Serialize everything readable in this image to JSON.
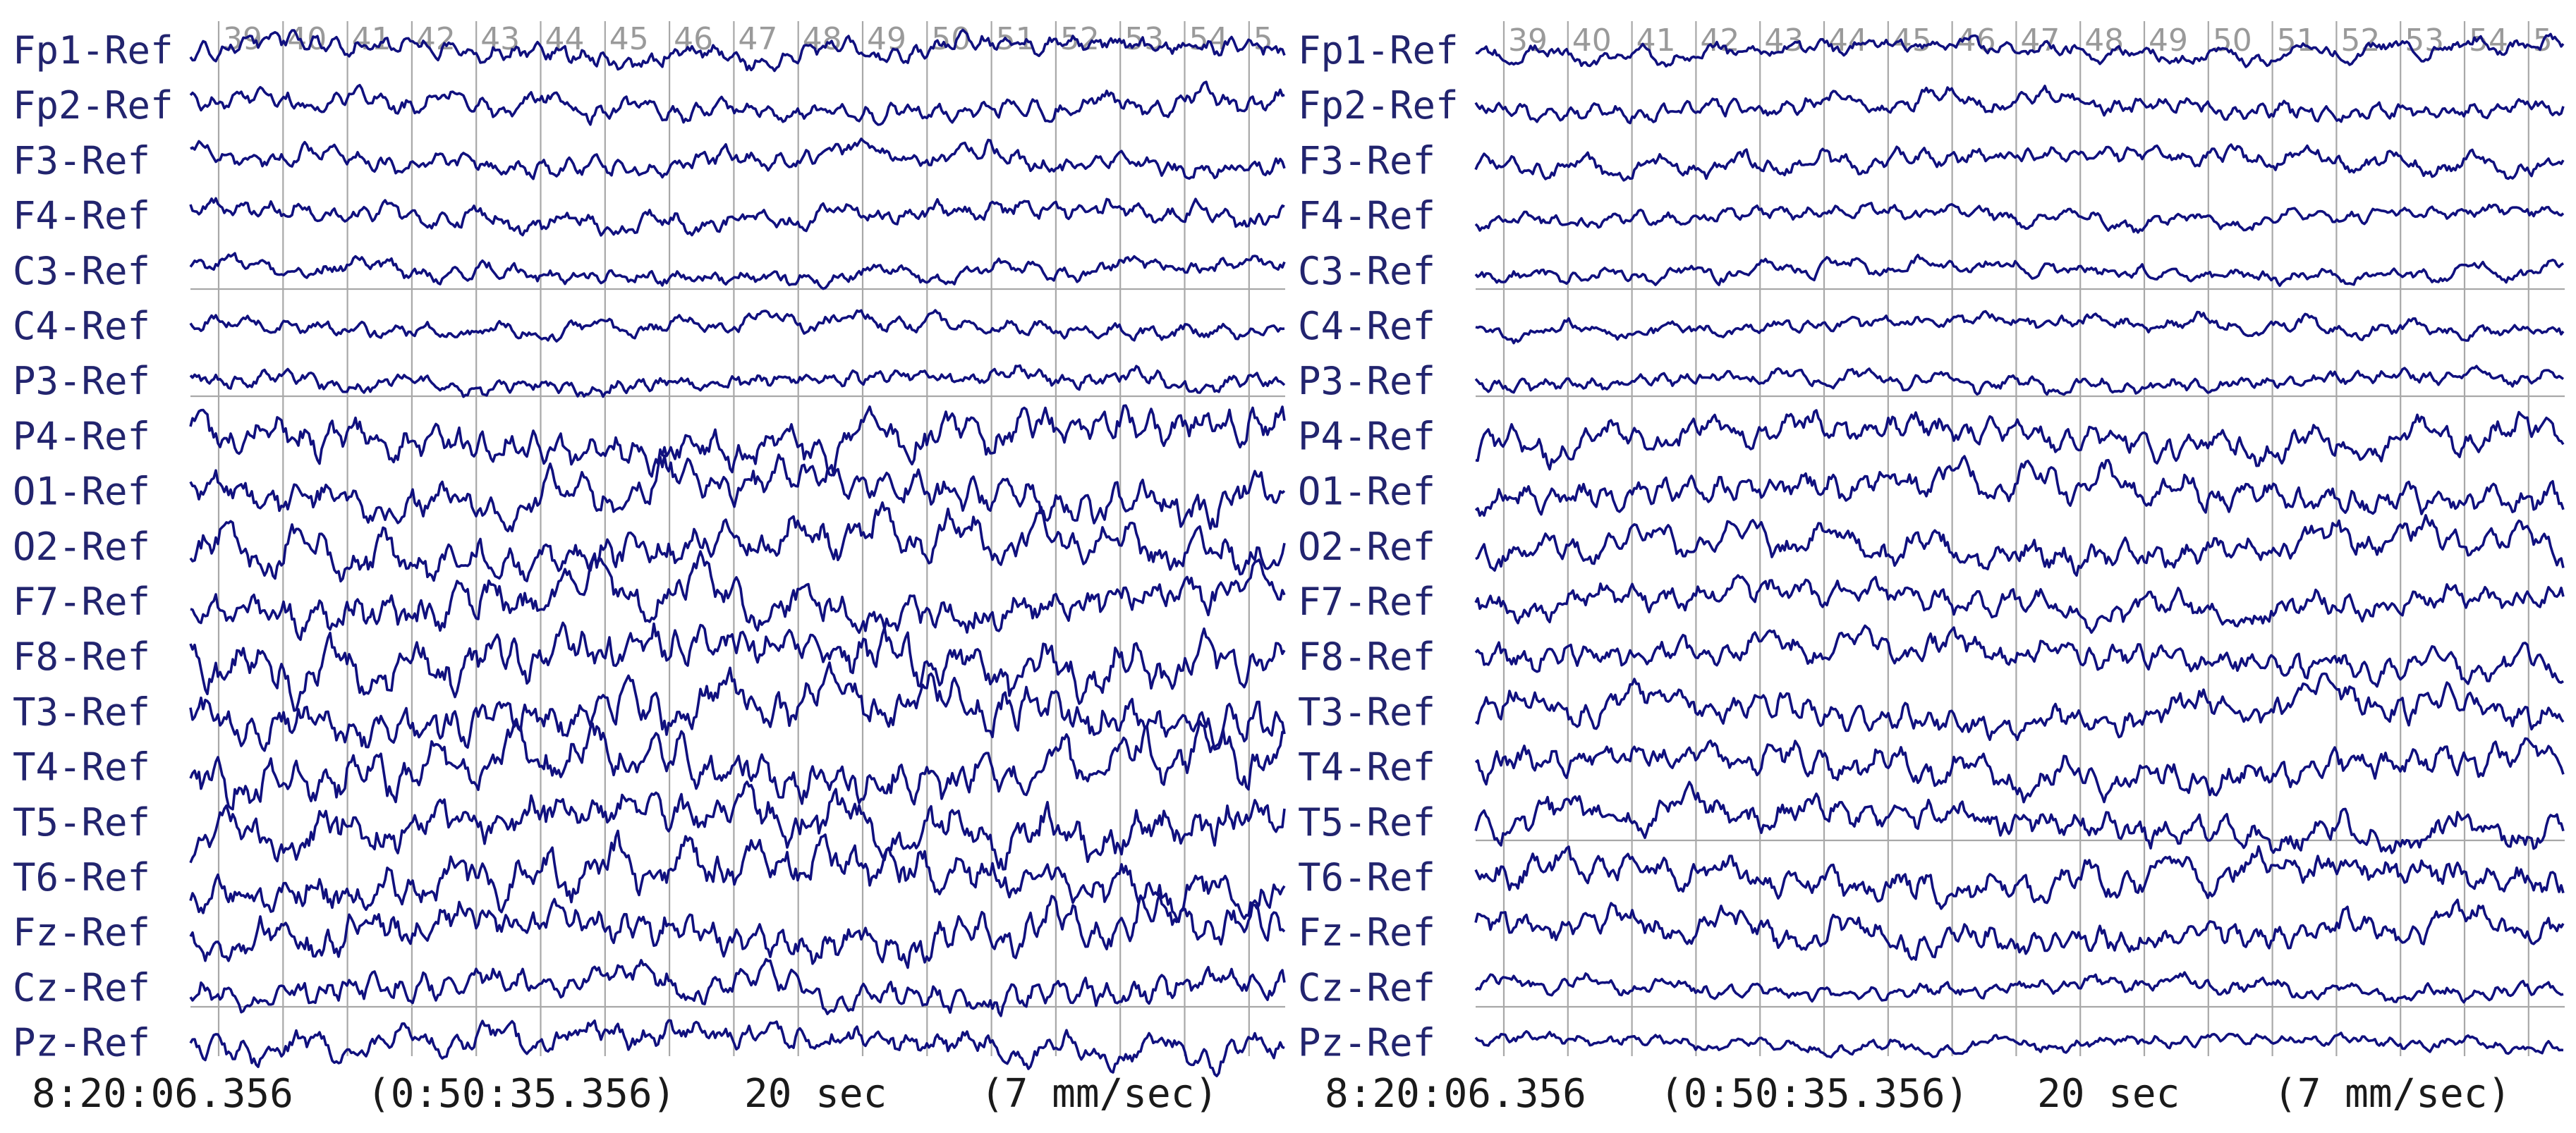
{
  "chart_data": [
    {
      "type": "line",
      "panel": "left",
      "channels": [
        "Fp1-Ref",
        "Fp2-Ref",
        "F3-Ref",
        "F4-Ref",
        "C3-Ref",
        "C4-Ref",
        "P3-Ref",
        "P4-Ref",
        "O1-Ref",
        "O2-Ref",
        "F7-Ref",
        "F8-Ref",
        "T3-Ref",
        "T4-Ref",
        "T5-Ref",
        "T6-Ref",
        "Fz-Ref",
        "Cz-Ref",
        "Pz-Ref"
      ],
      "seconds": [
        "39",
        "40",
        "41",
        "42",
        "43",
        "44",
        "45",
        "46",
        "47",
        "48",
        "49",
        "50",
        "51",
        "52",
        "53",
        "54",
        "5"
      ],
      "footer": {
        "clock": "8:20:06.356",
        "elapsed": "(0:50:35.356)",
        "window": "20 sec",
        "speed": "(7 mm/sec)"
      },
      "amplitude": [
        0.55,
        0.55,
        0.55,
        0.55,
        0.45,
        0.45,
        0.45,
        1.0,
        1.05,
        1.05,
        1.1,
        1.15,
        1.15,
        1.2,
        1.2,
        1.15,
        1.0,
        0.8,
        0.7
      ],
      "grid": true
    },
    {
      "type": "line",
      "panel": "right",
      "channels": [
        "Fp1-Ref",
        "Fp2-Ref",
        "F3-Ref",
        "F4-Ref",
        "C3-Ref",
        "C4-Ref",
        "P3-Ref",
        "P4-Ref",
        "O1-Ref",
        "O2-Ref",
        "F7-Ref",
        "F8-Ref",
        "T3-Ref",
        "T4-Ref",
        "T5-Ref",
        "T6-Ref",
        "Fz-Ref",
        "Cz-Ref",
        "Pz-Ref"
      ],
      "seconds": [
        "39",
        "40",
        "41",
        "42",
        "43",
        "44",
        "45",
        "46",
        "47",
        "48",
        "49",
        "50",
        "51",
        "52",
        "53",
        "54",
        "5"
      ],
      "footer": {
        "clock": "8:20:06.356",
        "elapsed": "(0:50:35.356)",
        "window": "20 sec",
        "speed": "(7 mm/sec)"
      },
      "amplitude": [
        0.45,
        0.5,
        0.5,
        0.4,
        0.4,
        0.4,
        0.4,
        0.75,
        0.8,
        0.8,
        0.75,
        0.75,
        0.8,
        0.85,
        0.85,
        0.85,
        0.75,
        0.4,
        0.35
      ],
      "grid": true
    }
  ]
}
